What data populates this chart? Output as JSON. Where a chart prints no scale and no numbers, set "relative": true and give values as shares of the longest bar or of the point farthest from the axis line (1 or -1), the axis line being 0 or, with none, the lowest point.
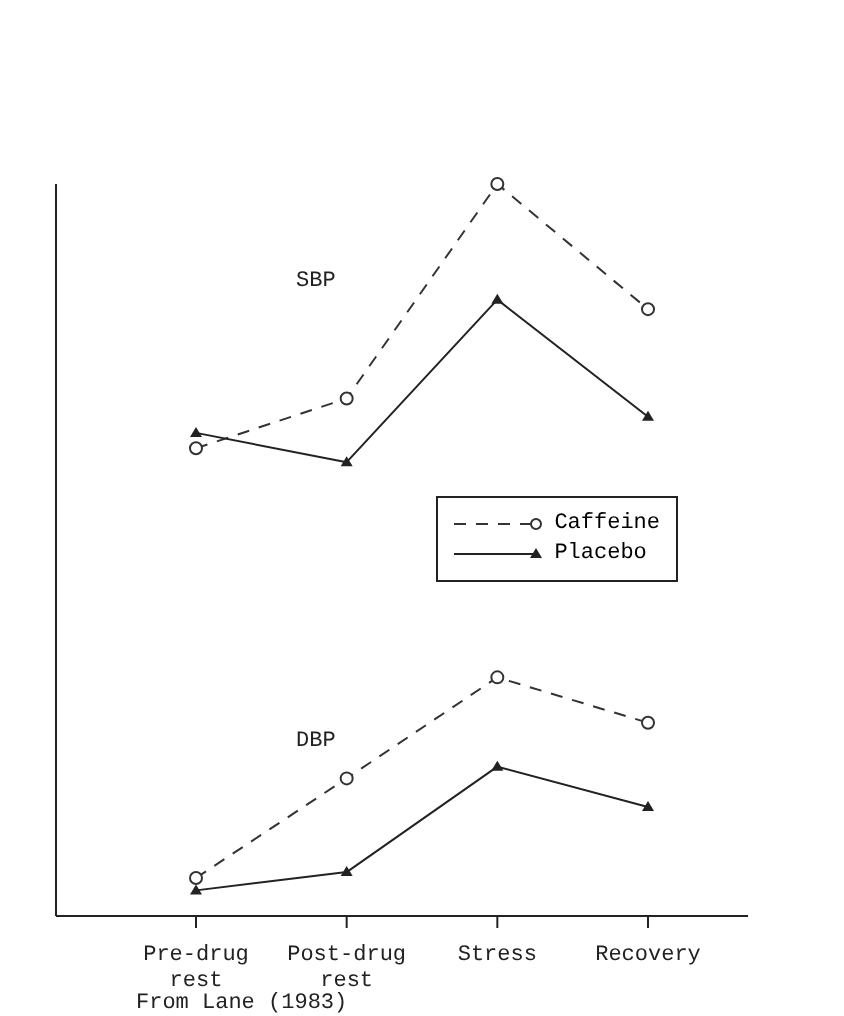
{
  "chart_data": {
    "type": "line",
    "relative": true,
    "categories": [
      "Pre-drug rest",
      "Post-drug rest",
      "Stress",
      "Recovery"
    ],
    "series": [
      {
        "name": "Caffeine",
        "color": "#333333",
        "values": [
          0.639,
          0.707,
          1,
          0.829
        ],
        "line_style": "dashed",
        "marker": "circle"
      },
      {
        "name": "Placebo",
        "color": "#222222",
        "values": [
          0.66,
          0.62,
          0.842,
          0.682
        ],
        "line_style": "solid",
        "marker": "triangle"
      },
      {
        "color": "#333333",
        "values": [
          0.052,
          0.188,
          0.326,
          0.264
        ],
        "line_style": "dashed",
        "marker": "circle"
      },
      {
        "color": "#222222",
        "values": [
          0.035,
          0.06,
          0.204,
          0.149
        ],
        "line_style": "solid",
        "marker": "triangle"
      }
    ],
    "legend": "right",
    "grid": false,
    "annotations": [
      "SBP",
      "DBP",
      "From Lane (1983)"
    ]
  }
}
